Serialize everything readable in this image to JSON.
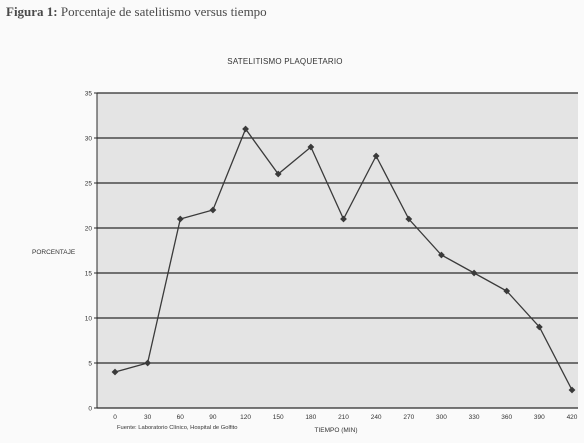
{
  "caption": {
    "label": "Figura 1:",
    "text": "Porcentaje de satelitismo versus tiempo"
  },
  "source_note": "Fuente: Laboratorio Clínico, Hospital   de Golfito",
  "colors": {
    "plot_background": "#e4e4e4",
    "gridline": "#2a2a2a",
    "series": "#3a3a3a"
  },
  "chart_data": {
    "type": "line",
    "title": "SATELITISMO PLAQUETARIO",
    "xlabel": "TIEMPO (MIN)",
    "ylabel": "PORCENTAJE",
    "x": [
      0,
      30,
      60,
      90,
      120,
      150,
      180,
      210,
      240,
      270,
      300,
      330,
      360,
      390,
      420
    ],
    "y": [
      4,
      5,
      21,
      22,
      31,
      26,
      29,
      21,
      28,
      21,
      17,
      15,
      13,
      9,
      2
    ],
    "ylim": [
      0,
      35
    ],
    "yticks": [
      0,
      5,
      10,
      15,
      20,
      25,
      30,
      35
    ],
    "grid": true,
    "legend": "none",
    "marker": "diamond"
  }
}
